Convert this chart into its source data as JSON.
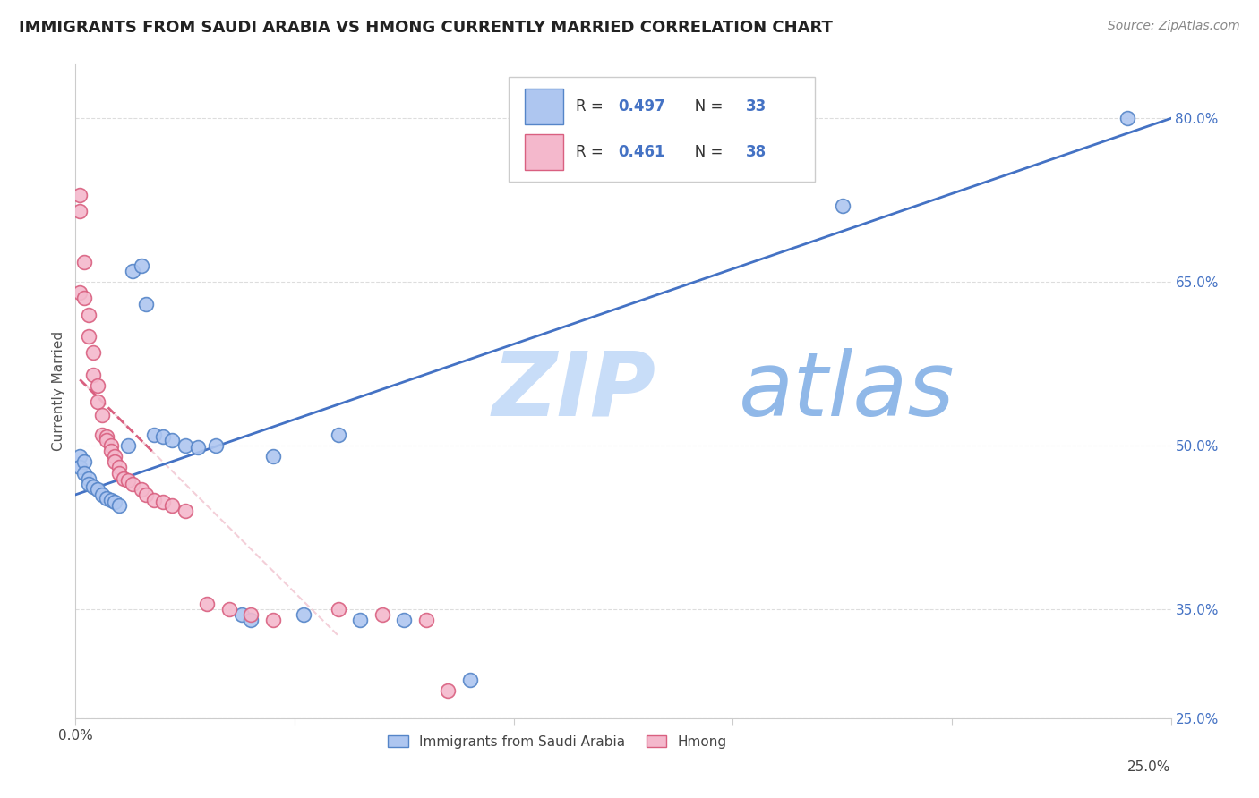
{
  "title": "IMMIGRANTS FROM SAUDI ARABIA VS HMONG CURRENTLY MARRIED CORRELATION CHART",
  "source": "Source: ZipAtlas.com",
  "ylabel": "Currently Married",
  "xlim": [
    0.0,
    0.25
  ],
  "ylim": [
    0.25,
    0.85
  ],
  "saudi_R": 0.497,
  "saudi_N": 33,
  "hmong_R": 0.461,
  "hmong_N": 38,
  "saudi_color": "#aec6f0",
  "saudi_edge_color": "#5585c8",
  "saudi_line_color": "#4472c4",
  "hmong_color": "#f4b8cc",
  "hmong_edge_color": "#d96080",
  "hmong_line_color": "#d96080",
  "watermark_zip": "#c8ddf8",
  "watermark_atlas": "#90b8e8",
  "saudi_points_x": [
    0.001,
    0.001,
    0.002,
    0.002,
    0.003,
    0.003,
    0.004,
    0.005,
    0.006,
    0.007,
    0.008,
    0.009,
    0.01,
    0.012,
    0.013,
    0.015,
    0.016,
    0.018,
    0.02,
    0.022,
    0.025,
    0.028,
    0.032,
    0.038,
    0.04,
    0.045,
    0.052,
    0.06,
    0.065,
    0.075,
    0.09,
    0.175,
    0.24
  ],
  "saudi_points_y": [
    0.49,
    0.48,
    0.485,
    0.475,
    0.47,
    0.465,
    0.462,
    0.46,
    0.455,
    0.452,
    0.45,
    0.448,
    0.445,
    0.5,
    0.66,
    0.665,
    0.63,
    0.51,
    0.508,
    0.505,
    0.5,
    0.498,
    0.5,
    0.345,
    0.34,
    0.49,
    0.345,
    0.51,
    0.34,
    0.34,
    0.285,
    0.72,
    0.8
  ],
  "hmong_points_x": [
    0.001,
    0.001,
    0.001,
    0.002,
    0.002,
    0.003,
    0.003,
    0.004,
    0.004,
    0.005,
    0.005,
    0.006,
    0.006,
    0.007,
    0.007,
    0.008,
    0.008,
    0.009,
    0.009,
    0.01,
    0.01,
    0.011,
    0.012,
    0.013,
    0.015,
    0.016,
    0.018,
    0.02,
    0.022,
    0.025,
    0.03,
    0.035,
    0.04,
    0.045,
    0.06,
    0.07,
    0.08,
    0.085
  ],
  "hmong_points_y": [
    0.73,
    0.715,
    0.64,
    0.668,
    0.635,
    0.62,
    0.6,
    0.585,
    0.565,
    0.555,
    0.54,
    0.528,
    0.51,
    0.508,
    0.505,
    0.5,
    0.495,
    0.49,
    0.485,
    0.48,
    0.475,
    0.47,
    0.468,
    0.465,
    0.46,
    0.455,
    0.45,
    0.448,
    0.445,
    0.44,
    0.355,
    0.35,
    0.345,
    0.34,
    0.35,
    0.345,
    0.34,
    0.275
  ],
  "hmong_line_x": [
    0.001,
    0.018
  ],
  "blue_line_x": [
    0.0,
    0.25
  ],
  "blue_line_y": [
    0.455,
    0.8
  ]
}
